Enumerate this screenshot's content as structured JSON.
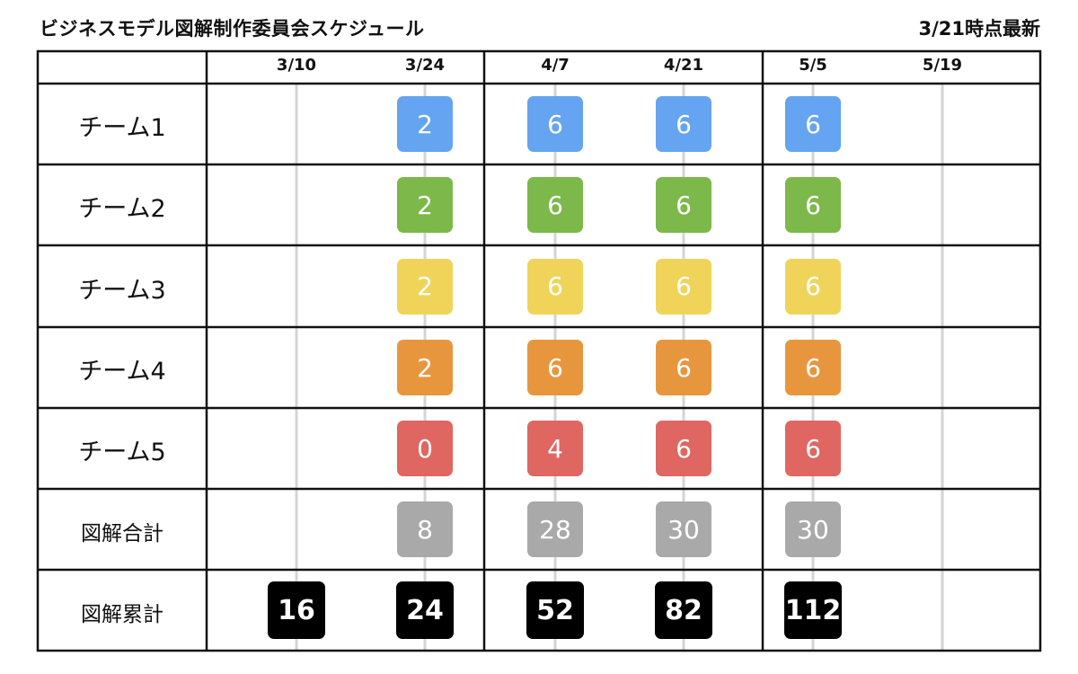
{
  "header": {
    "title": "ビジネスモデル図解制作委員会スケジュール",
    "updated": "3/21時点最新"
  },
  "dates": [
    "3/10",
    "3/24",
    "4/7",
    "4/21",
    "5/5",
    "5/19"
  ],
  "rows": [
    {
      "label": "チーム1",
      "kind": "team",
      "color": "#64a4f0",
      "cells": [
        null,
        "2",
        "6",
        "6",
        "6",
        null
      ]
    },
    {
      "label": "チーム2",
      "kind": "team",
      "color": "#7cb84a",
      "cells": [
        null,
        "2",
        "6",
        "6",
        "6",
        null
      ]
    },
    {
      "label": "チーム3",
      "kind": "team",
      "color": "#f0d45a",
      "cells": [
        null,
        "2",
        "6",
        "6",
        "6",
        null
      ]
    },
    {
      "label": "チーム4",
      "kind": "team",
      "color": "#e8963e",
      "cells": [
        null,
        "2",
        "6",
        "6",
        "6",
        null
      ]
    },
    {
      "label": "チーム5",
      "kind": "team",
      "color": "#e06661",
      "cells": [
        null,
        "0",
        "4",
        "6",
        "6",
        null
      ]
    },
    {
      "label": "図解合計",
      "kind": "summary",
      "color": "#a9a9a9",
      "cells": [
        null,
        "8",
        "28",
        "30",
        "30",
        null
      ]
    },
    {
      "label": "図解累計",
      "kind": "cumulative",
      "color": "#000000",
      "cells": [
        "16",
        "24",
        "52",
        "82",
        "112",
        null
      ]
    }
  ],
  "colors": {
    "grid": "#111111",
    "timeline": "#d4d4d4"
  }
}
